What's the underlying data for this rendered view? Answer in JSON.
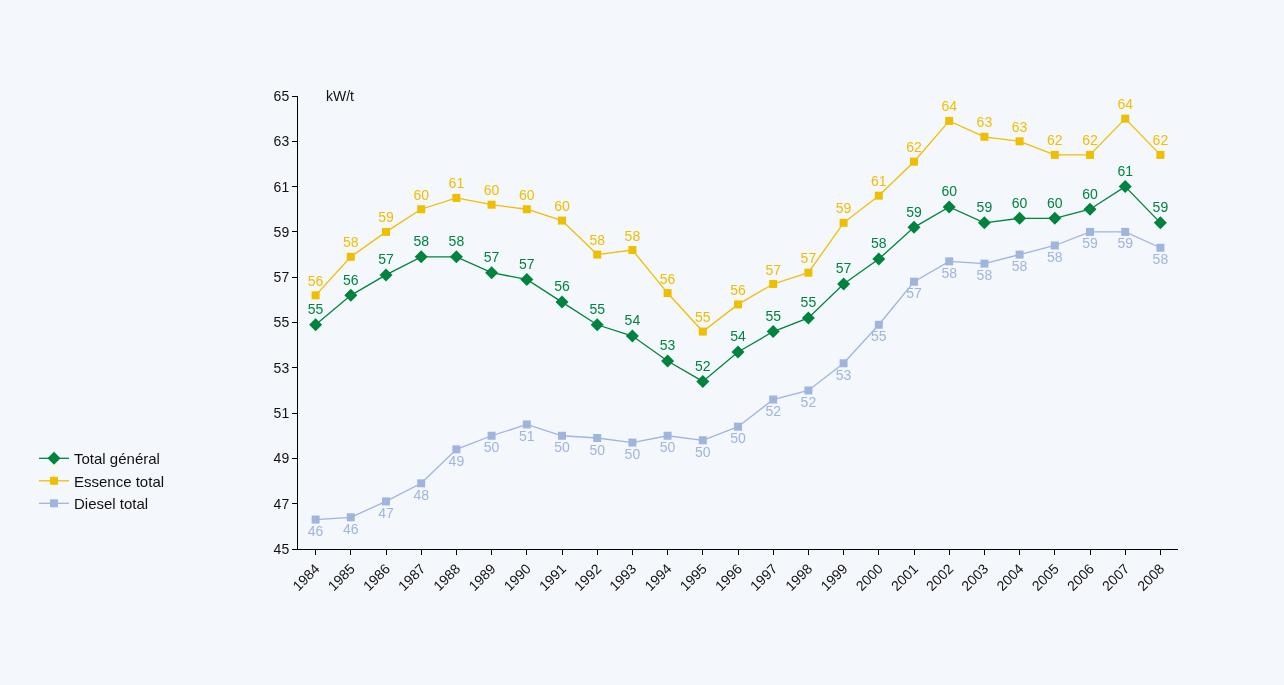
{
  "chart_data": {
    "type": "line",
    "ylabel": "kW/t",
    "categories": [
      "1984",
      "1985",
      "1986",
      "1987",
      "1988",
      "1989",
      "1990",
      "1991",
      "1992",
      "1993",
      "1994",
      "1995",
      "1996",
      "1997",
      "1998",
      "1999",
      "2000",
      "2001",
      "2002",
      "2003",
      "2004",
      "2005",
      "2006",
      "2007",
      "2008"
    ],
    "ylim": [
      45,
      65
    ],
    "yticks": [
      45,
      47,
      49,
      51,
      53,
      55,
      57,
      59,
      61,
      63,
      65
    ],
    "grid": false,
    "legend": "left",
    "line_style": "solid",
    "series": [
      {
        "name": "Total général",
        "color": "#00843d",
        "marker": "diamond",
        "values": [
          54.9,
          56.2,
          57.1,
          57.9,
          57.9,
          57.2,
          56.9,
          55.9,
          54.9,
          54.4,
          53.3,
          52.4,
          53.7,
          54.6,
          55.2,
          56.7,
          57.8,
          59.2,
          60.1,
          59.4,
          59.6,
          59.6,
          60.0,
          61.0,
          59.4
        ],
        "value_labels": [
          "55",
          "56",
          "57",
          "58",
          "58",
          "57",
          "57",
          "56",
          "55",
          "54",
          "53",
          "52",
          "54",
          "55",
          "55",
          "57",
          "58",
          "59",
          "60",
          "59",
          "60",
          "60",
          "60",
          "61",
          "59"
        ]
      },
      {
        "name": "Essence total",
        "color": "#f0be00",
        "marker": "square",
        "values": [
          56.2,
          57.9,
          59.0,
          60.0,
          60.5,
          60.2,
          60.0,
          59.5,
          58.0,
          58.2,
          56.3,
          54.6,
          55.8,
          56.7,
          57.2,
          59.4,
          60.6,
          62.1,
          63.9,
          63.2,
          63.0,
          62.4,
          62.4,
          64.0,
          62.4
        ],
        "value_labels": [
          "56",
          "58",
          "59",
          "60",
          "61",
          "60",
          "60",
          "60",
          "58",
          "58",
          "56",
          "55",
          "56",
          "57",
          "57",
          "59",
          "61",
          "62",
          "64",
          "63",
          "63",
          "62",
          "62",
          "64",
          "62"
        ]
      },
      {
        "name": "Diesel total",
        "color": "#9fb5de",
        "marker": "square",
        "values": [
          46.3,
          46.4,
          47.1,
          47.9,
          49.4,
          50.0,
          50.5,
          50.0,
          49.9,
          49.7,
          50.0,
          49.8,
          50.4,
          51.6,
          52.0,
          53.2,
          54.9,
          56.8,
          57.7,
          57.6,
          58.0,
          58.4,
          59.0,
          59.0,
          58.3
        ],
        "value_labels": [
          "46",
          "46",
          "47",
          "48",
          "49",
          "50",
          "51",
          "50",
          "50",
          "50",
          "50",
          "50",
          "50",
          "52",
          "52",
          "53",
          "55",
          "57",
          "58",
          "58",
          "58",
          "58",
          "59",
          "59",
          "58"
        ]
      }
    ]
  }
}
